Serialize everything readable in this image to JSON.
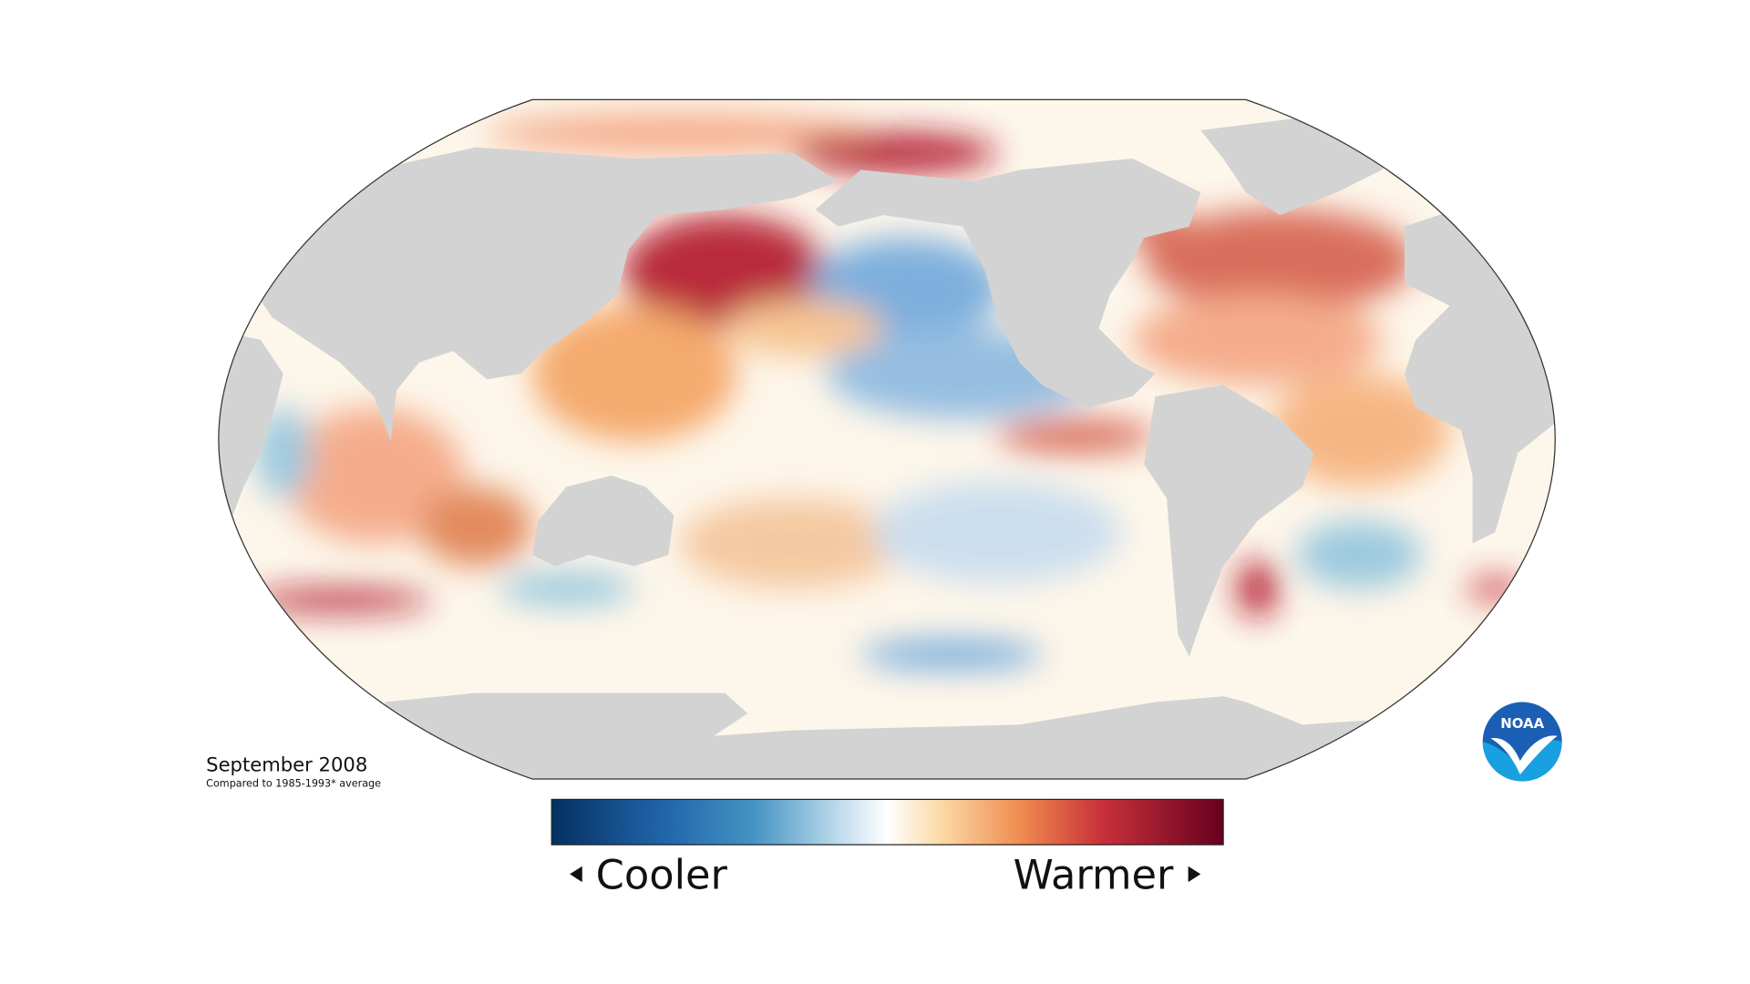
{
  "map": {
    "title": "September 2008",
    "subtitle": "Compared to 1985-1993* average",
    "legend": {
      "low": "Cooler",
      "high": "Warmer"
    }
  },
  "logo": {
    "text": "NOAA"
  }
}
